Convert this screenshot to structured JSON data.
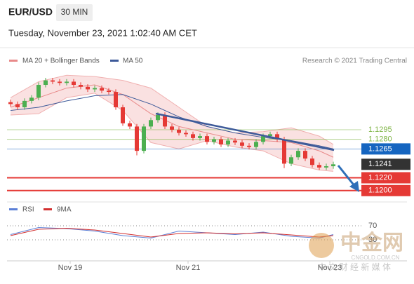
{
  "chart_data": {
    "type": "candlestick",
    "symbol": "EUR/USD",
    "timeframe": "30 MIN",
    "subtitle": "Tuesday, November 23, 2021 1:02:40 AM CET",
    "source": "Research © 2021 Trading Central",
    "legend": [
      "MA 20 + Bollinger Bands",
      "MA 50"
    ],
    "up_color": "#4caf50",
    "down_color": "#e53935",
    "open": [
      1.1338,
      1.1335,
      1.133,
      1.134,
      1.1345,
      1.1365,
      1.1372,
      1.137,
      1.1368,
      1.137,
      1.1365,
      1.1362,
      1.1358,
      1.136,
      1.1356,
      1.1354,
      1.133,
      1.1305,
      1.13,
      1.1262,
      1.13,
      1.131,
      1.1318,
      1.13,
      1.1295,
      1.129,
      1.1288,
      1.1282,
      1.1285,
      1.1276,
      1.128,
      1.1272,
      1.1278,
      1.1275,
      1.127,
      1.1268,
      1.1276,
      1.1285,
      1.1288,
      1.128,
      1.1242,
      1.1252,
      1.1262,
      1.125,
      1.124,
      1.1236,
      1.1238
    ],
    "high": [
      1.1342,
      1.1339,
      1.1344,
      1.1349,
      1.1369,
      1.1376,
      1.1376,
      1.1374,
      1.1374,
      1.1374,
      1.1369,
      1.1366,
      1.1364,
      1.1364,
      1.136,
      1.1358,
      1.1334,
      1.1309,
      1.1304,
      1.1304,
      1.1314,
      1.1322,
      1.1322,
      1.1304,
      1.1299,
      1.1294,
      1.1292,
      1.1289,
      1.1289,
      1.1284,
      1.1284,
      1.1282,
      1.1282,
      1.1279,
      1.1274,
      1.128,
      1.1289,
      1.1292,
      1.1292,
      1.1284,
      1.1256,
      1.1266,
      1.1266,
      1.1254,
      1.1244,
      1.1242,
      1.1245
    ],
    "low": [
      1.1331,
      1.1326,
      1.1326,
      1.1336,
      1.1341,
      1.1361,
      1.1366,
      1.1364,
      1.1364,
      1.1361,
      1.1358,
      1.1354,
      1.1354,
      1.1352,
      1.135,
      1.1326,
      1.1301,
      1.1296,
      1.1255,
      1.1258,
      1.1296,
      1.1306,
      1.1296,
      1.1291,
      1.1286,
      1.1284,
      1.1278,
      1.1278,
      1.1272,
      1.1272,
      1.1268,
      1.1268,
      1.1271,
      1.1266,
      1.1264,
      1.1264,
      1.1272,
      1.1281,
      1.1276,
      1.1235,
      1.1238,
      1.1248,
      1.1246,
      1.1236,
      1.1232,
      1.1232,
      1.1234
    ],
    "close": [
      1.1335,
      1.133,
      1.134,
      1.1345,
      1.1365,
      1.1372,
      1.137,
      1.1368,
      1.137,
      1.1365,
      1.1362,
      1.1358,
      1.136,
      1.1356,
      1.1354,
      1.133,
      1.1305,
      1.13,
      1.1262,
      1.13,
      1.131,
      1.1318,
      1.13,
      1.1295,
      1.129,
      1.1288,
      1.1282,
      1.1285,
      1.1276,
      1.128,
      1.1272,
      1.1278,
      1.1275,
      1.127,
      1.1268,
      1.1276,
      1.1285,
      1.1288,
      1.128,
      1.1242,
      1.1252,
      1.1262,
      1.125,
      1.124,
      1.1236,
      1.1238,
      1.1241
    ],
    "overlay_x": [
      0,
      4,
      8,
      12,
      16,
      20,
      24,
      28,
      32,
      36,
      40,
      44,
      46
    ],
    "overlays": [
      {
        "name": "MA 20",
        "color": "#e88a8a",
        "values": [
          1.133,
          1.1345,
          1.136,
          1.1365,
          1.135,
          1.132,
          1.13,
          1.129,
          1.128,
          1.1278,
          1.1275,
          1.1262,
          1.1252
        ]
      },
      {
        "name": "MA 50",
        "color": "#3d5a99",
        "values": [
          1.1325,
          1.133,
          1.134,
          1.1348,
          1.135,
          1.1335,
          1.1315,
          1.13,
          1.129,
          1.1283,
          1.1278,
          1.127,
          1.1265
        ]
      }
    ],
    "band_upper": [
      1.1345,
      1.137,
      1.138,
      1.1378,
      1.1372,
      1.136,
      1.133,
      1.13,
      1.129,
      1.1292,
      1.1298,
      1.1285,
      1.1272
    ],
    "band_lower": [
      1.1318,
      1.132,
      1.1345,
      1.1352,
      1.1325,
      1.1275,
      1.1265,
      1.1278,
      1.1268,
      1.1262,
      1.1242,
      1.1232,
      1.123
    ],
    "band_color": "#f6c9c9",
    "levels": [
      1.1295,
      {
        "value": 1.128,
        "label": "1.1280"
      },
      1.1265,
      1.1241,
      {
        "value": 1.122,
        "label": "1.1220"
      },
      {
        "value": 1.12,
        "label": "1.1200"
      }
    ],
    "level_colors": [
      "#7cb342",
      "#7cb342",
      "#1565c0",
      "#333333",
      "#e53935",
      "#e53935"
    ],
    "level_styles": [
      "text",
      "text",
      "box",
      "box",
      "box",
      "box"
    ],
    "level_lines": [
      "thin",
      "thin",
      "thin",
      "none",
      "thick",
      "thick"
    ],
    "xlim": [
      -0.5,
      49.5
    ],
    "ylim": [
      1.1191,
      1.1388
    ],
    "xticks": [
      {
        "value": 8.5,
        "label": "Nov 19"
      },
      {
        "value": 25.3,
        "label": "Nov 21"
      },
      {
        "value": 45.5,
        "label": "Nov 23"
      }
    ],
    "rsi": {
      "legend": [
        "RSI",
        "9MA"
      ],
      "ylim": [
        0,
        100
      ],
      "yticks": [
        70,
        30
      ],
      "series": [
        {
          "name": "RSI",
          "color": "#5b7fd6",
          "values": [
            45,
            65,
            62,
            55,
            42,
            35,
            55,
            50,
            45,
            52,
            40,
            35,
            45
          ]
        },
        {
          "name": "9MA",
          "color": "#d32f2f",
          "values": [
            42,
            60,
            63,
            58,
            48,
            38,
            48,
            50,
            47,
            50,
            44,
            38,
            42
          ]
        }
      ]
    },
    "watermark": {
      "name": "中金网",
      "site": "CNGOLD.COM.CN",
      "tagline": "中 文 财 经 新 媒 体"
    }
  }
}
